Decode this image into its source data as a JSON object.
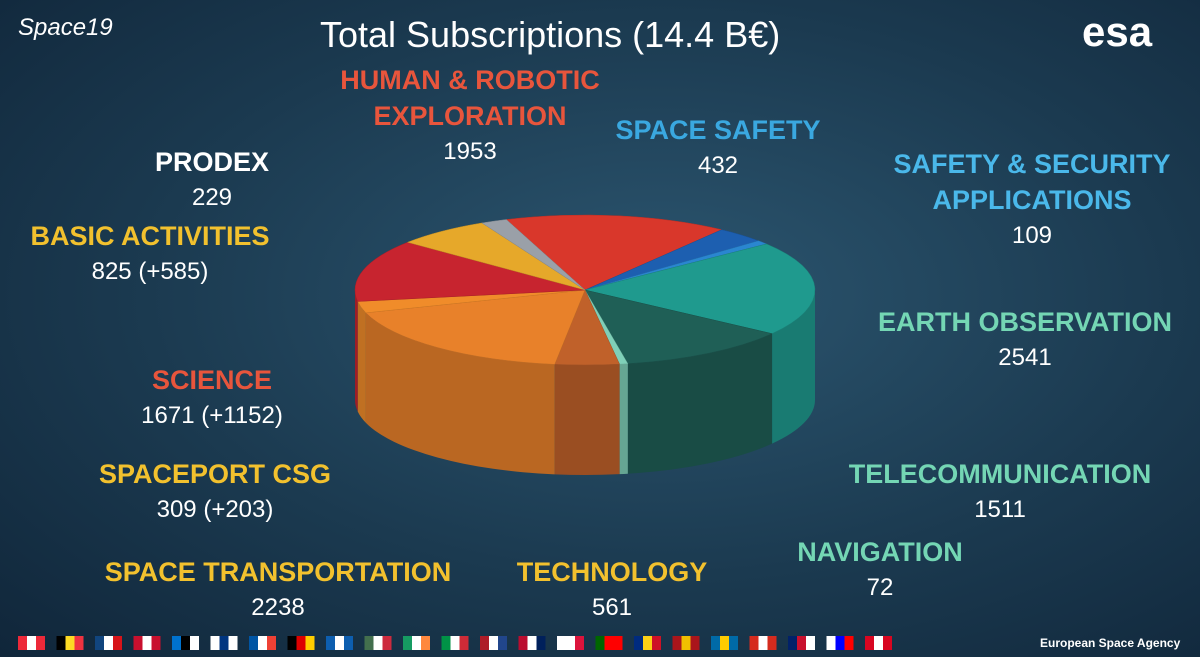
{
  "branding": {
    "event": "Space19",
    "logo": "esa",
    "footer": "European Space Agency"
  },
  "chart_data": {
    "type": "pie",
    "title": "Total Subscriptions (14.4 B€)",
    "categories": [
      "HUMAN & ROBOTIC EXPLORATION",
      "SPACE SAFETY",
      "SAFETY & SECURITY APPLICATIONS",
      "EARTH OBSERVATION",
      "TELECOMMUNICATION",
      "NAVIGATION",
      "TECHNOLOGY",
      "SPACE TRANSPORTATION",
      "SPACEPORT CSG",
      "SCIENCE",
      "BASIC ACTIVITIES",
      "PRODEX"
    ],
    "values": [
      1953,
      432,
      109,
      2541,
      1511,
      72,
      561,
      2238,
      309,
      1671,
      825,
      229
    ],
    "value_labels": [
      "1953",
      "432",
      "109",
      "2541",
      "1511",
      "72",
      "561",
      "2238",
      "309 (+203)",
      "1671 (+1152)",
      "825 (+585)",
      "229"
    ],
    "colors": [
      "#d9372b",
      "#1d5fb0",
      "#2a86d0",
      "#1f9a8e",
      "#1f5f56",
      "#7fd0b8",
      "#c0612a",
      "#e8812a",
      "#f08c2a",
      "#c7242f",
      "#e6a82a",
      "#9aa0a8"
    ],
    "label_colors": [
      "#e8553c",
      "#3aa8e0",
      "#4ab8ea",
      "#74d6b4",
      "#74d6b4",
      "#74d6b4",
      "#f2c12e",
      "#f2c12e",
      "#f2c12e",
      "#e8553c",
      "#f2c12e",
      "#ffffff"
    ]
  }
}
